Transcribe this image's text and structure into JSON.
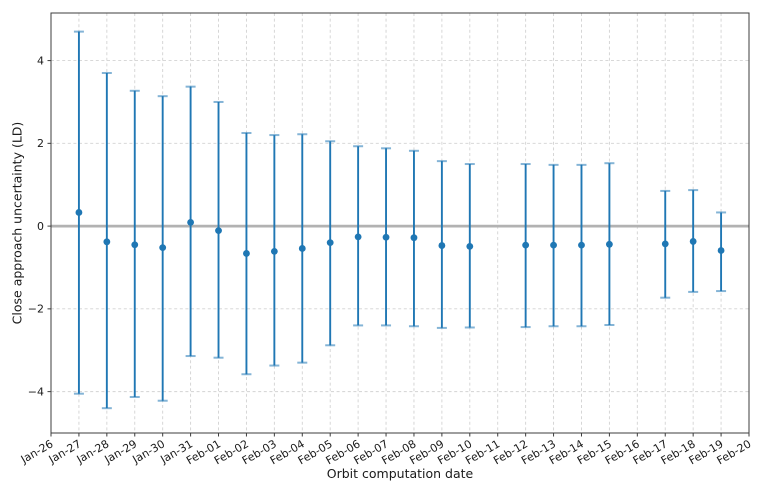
{
  "chart_data": {
    "type": "scatter",
    "subtype": "errorbar",
    "title": "",
    "xlabel": "Orbit computation date",
    "ylabel": "Close approach uncertainty (LD)",
    "categories": [
      "Jan-26",
      "Jan-27",
      "Jan-28",
      "Jan-29",
      "Jan-30",
      "Jan-31",
      "Feb-01",
      "Feb-02",
      "Feb-03",
      "Feb-04",
      "Feb-05",
      "Feb-06",
      "Feb-07",
      "Feb-08",
      "Feb-09",
      "Feb-10",
      "Feb-11",
      "Feb-12",
      "Feb-13",
      "Feb-14",
      "Feb-15",
      "Feb-16",
      "Feb-17",
      "Feb-18",
      "Feb-19",
      "Feb-20"
    ],
    "yticks": [
      {
        "value": 4,
        "label": "4"
      },
      {
        "value": 2,
        "label": "2"
      },
      {
        "value": 0,
        "label": "0"
      },
      {
        "value": -2,
        "label": "−2"
      },
      {
        "value": -4,
        "label": "−4"
      }
    ],
    "ylim": [
      -5.0,
      5.15
    ],
    "grid": true,
    "grid_style": "dashed",
    "zero_line": true,
    "legend": "none",
    "points": [
      {
        "date": "Jan-27",
        "value": 0.33,
        "high": 4.7,
        "low": -4.05
      },
      {
        "date": "Jan-28",
        "value": -0.38,
        "high": 3.7,
        "low": -4.4
      },
      {
        "date": "Jan-29",
        "value": -0.45,
        "high": 3.27,
        "low": -4.13
      },
      {
        "date": "Jan-30",
        "value": -0.52,
        "high": 3.14,
        "low": -4.22
      },
      {
        "date": "Jan-31",
        "value": 0.09,
        "high": 3.37,
        "low": -3.14
      },
      {
        "date": "Feb-01",
        "value": -0.11,
        "high": 3.0,
        "low": -3.18
      },
      {
        "date": "Feb-02",
        "value": -0.66,
        "high": 2.25,
        "low": -3.58
      },
      {
        "date": "Feb-03",
        "value": -0.61,
        "high": 2.2,
        "low": -3.37
      },
      {
        "date": "Feb-04",
        "value": -0.54,
        "high": 2.22,
        "low": -3.3
      },
      {
        "date": "Feb-05",
        "value": -0.4,
        "high": 2.05,
        "low": -2.88
      },
      {
        "date": "Feb-06",
        "value": -0.26,
        "high": 1.93,
        "low": -2.4
      },
      {
        "date": "Feb-07",
        "value": -0.27,
        "high": 1.88,
        "low": -2.4
      },
      {
        "date": "Feb-08",
        "value": -0.28,
        "high": 1.82,
        "low": -2.42
      },
      {
        "date": "Feb-09",
        "value": -0.47,
        "high": 1.57,
        "low": -2.46
      },
      {
        "date": "Feb-10",
        "value": -0.49,
        "high": 1.5,
        "low": -2.45
      },
      {
        "date": "Feb-12",
        "value": -0.46,
        "high": 1.5,
        "low": -2.44
      },
      {
        "date": "Feb-13",
        "value": -0.46,
        "high": 1.48,
        "low": -2.42
      },
      {
        "date": "Feb-14",
        "value": -0.46,
        "high": 1.48,
        "low": -2.42
      },
      {
        "date": "Feb-15",
        "value": -0.44,
        "high": 1.52,
        "low": -2.39
      },
      {
        "date": "Feb-17",
        "value": -0.43,
        "high": 0.85,
        "low": -1.73
      },
      {
        "date": "Feb-18",
        "value": -0.37,
        "high": 0.87,
        "low": -1.59
      },
      {
        "date": "Feb-19",
        "value": -0.59,
        "high": 0.33,
        "low": -1.57
      }
    ],
    "colors": {
      "series": "#1f77b4",
      "cap": "rgba(31,119,180,0.55)",
      "zero_line": "#b2b2b2",
      "grid": "#d2d2d2",
      "spine": "#3c3c3c",
      "tick": "#3c3c3c",
      "text": "#1a1a1a",
      "background": "#ffffff"
    }
  }
}
